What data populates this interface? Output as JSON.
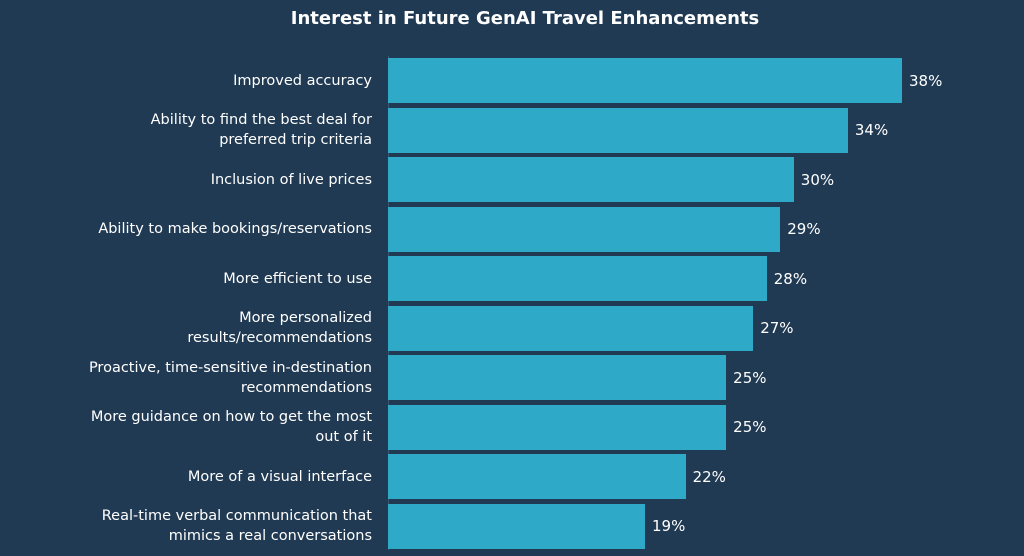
{
  "chart_data": {
    "type": "bar",
    "orientation": "horizontal",
    "title": "Interest in Future GenAI Travel Enhancements",
    "categories": [
      "Improved accuracy",
      "Ability to find the best deal for\npreferred trip criteria",
      "Inclusion of live prices",
      "Ability to make bookings/reservations",
      "More efficient to use",
      "More personalized\nresults/recommendations",
      "Proactive, time-sensitive in-destination\nrecommendations",
      "More guidance on how to get the most\nout of it",
      "More of a visual interface",
      "Real-time verbal communication that\nmimics a real conversations"
    ],
    "values": [
      38,
      34,
      30,
      29,
      28,
      27,
      25,
      25,
      22,
      19
    ],
    "value_labels": [
      "38%",
      "34%",
      "30%",
      "29%",
      "28%",
      "27%",
      "25%",
      "25%",
      "22%",
      "19%"
    ],
    "color": "#2eaac8"
  }
}
